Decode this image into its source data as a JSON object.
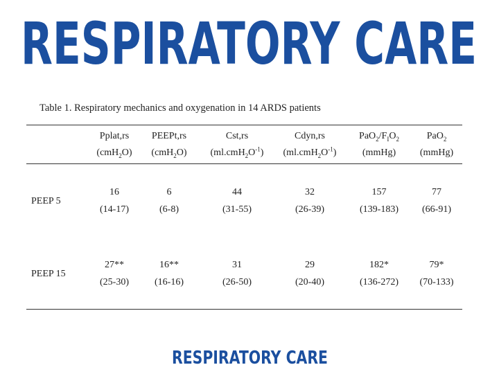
{
  "header_logo": "RESPIRATORY  CARE",
  "caption": "Table 1. Respiratory mechanics and oxygenation in 14 ARDS patients",
  "table": {
    "columns": [
      {
        "name": [
          "Pplat,rs"
        ],
        "unit": [
          "(cmH",
          {
            "sub": "2"
          },
          "O)"
        ]
      },
      {
        "name": [
          "PEEPt,rs"
        ],
        "unit": [
          "(cmH",
          {
            "sub": "2"
          },
          "O)"
        ]
      },
      {
        "name": [
          "Cst,rs"
        ],
        "unit": [
          "(ml.cmH",
          {
            "sub": "2"
          },
          "O",
          {
            "sup": "-1"
          },
          ")"
        ]
      },
      {
        "name": [
          "Cdyn,rs"
        ],
        "unit": [
          "(ml.cmH",
          {
            "sub": "2"
          },
          "O",
          {
            "sup": "-1"
          },
          ")"
        ]
      },
      {
        "name": [
          "PaO",
          {
            "sub": "2"
          },
          "/F",
          {
            "sub": "I"
          },
          "O",
          {
            "sub": "2"
          }
        ],
        "unit": [
          "(mmHg)"
        ]
      },
      {
        "name": [
          "PaO",
          {
            "sub": "2"
          }
        ],
        "unit": [
          "(mmHg)"
        ]
      }
    ],
    "rows": [
      {
        "label": "PEEP 5",
        "cells": [
          {
            "value": "16",
            "range": "(14-17)"
          },
          {
            "value": "6",
            "range": "(6-8)"
          },
          {
            "value": "44",
            "range": "(31-55)"
          },
          {
            "value": "32",
            "range": "(26-39)"
          },
          {
            "value": "157",
            "range": "(139-183)"
          },
          {
            "value": "77",
            "range": "(66-91)"
          }
        ]
      },
      {
        "label": "PEEP 15",
        "cells": [
          {
            "value": "27**",
            "range": "(25-30)"
          },
          {
            "value": "16**",
            "range": "(16-16)"
          },
          {
            "value": "31",
            "range": "(26-50)"
          },
          {
            "value": "29",
            "range": "(20-40)"
          },
          {
            "value": "182*",
            "range": "(136-272)"
          },
          {
            "value": "79*",
            "range": "(70-133)"
          }
        ]
      }
    ]
  },
  "footer_logo": "RESPIRATORY CARE"
}
